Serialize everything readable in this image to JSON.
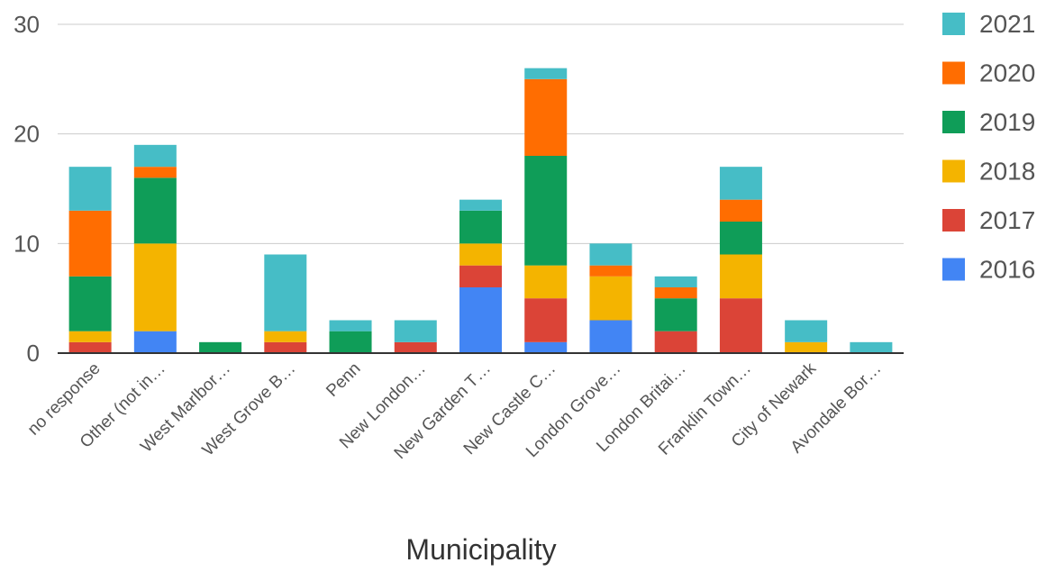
{
  "chart_data": {
    "type": "bar",
    "stacked": true,
    "title": "",
    "xlabel": "Municipality",
    "ylabel": "",
    "ylim": [
      0,
      30
    ],
    "yticks": [
      0,
      10,
      20,
      30
    ],
    "grid": true,
    "legend_position": "right",
    "categories": [
      "no response",
      "Other (not in…",
      "West Marlbor…",
      "West Grove B…",
      "Penn",
      "New London…",
      "New Garden T…",
      "New Castle C…",
      "London Grove…",
      "London Britai…",
      "Franklin Town…",
      "City of Newark",
      "Avondale Bor…"
    ],
    "series": [
      {
        "name": "2016",
        "color": "#4285f4",
        "values": [
          0,
          2,
          0,
          0,
          0,
          0,
          6,
          1,
          3,
          0,
          0,
          0,
          0
        ]
      },
      {
        "name": "2017",
        "color": "#db4437",
        "values": [
          1,
          0,
          0,
          1,
          0,
          1,
          2,
          4,
          0,
          2,
          5,
          0,
          0
        ]
      },
      {
        "name": "2018",
        "color": "#f4b400",
        "values": [
          1,
          8,
          0,
          1,
          0,
          0,
          2,
          3,
          4,
          0,
          4,
          1,
          0
        ]
      },
      {
        "name": "2019",
        "color": "#0f9d58",
        "values": [
          5,
          6,
          1,
          0,
          2,
          0,
          3,
          10,
          0,
          3,
          3,
          0,
          0
        ]
      },
      {
        "name": "2020",
        "color": "#ff6d01",
        "values": [
          6,
          1,
          0,
          0,
          0,
          0,
          0,
          7,
          1,
          1,
          2,
          0,
          0
        ]
      },
      {
        "name": "2021",
        "color": "#46bdc6",
        "values": [
          4,
          2,
          0,
          7,
          1,
          2,
          1,
          1,
          2,
          1,
          3,
          2,
          1
        ]
      }
    ]
  }
}
